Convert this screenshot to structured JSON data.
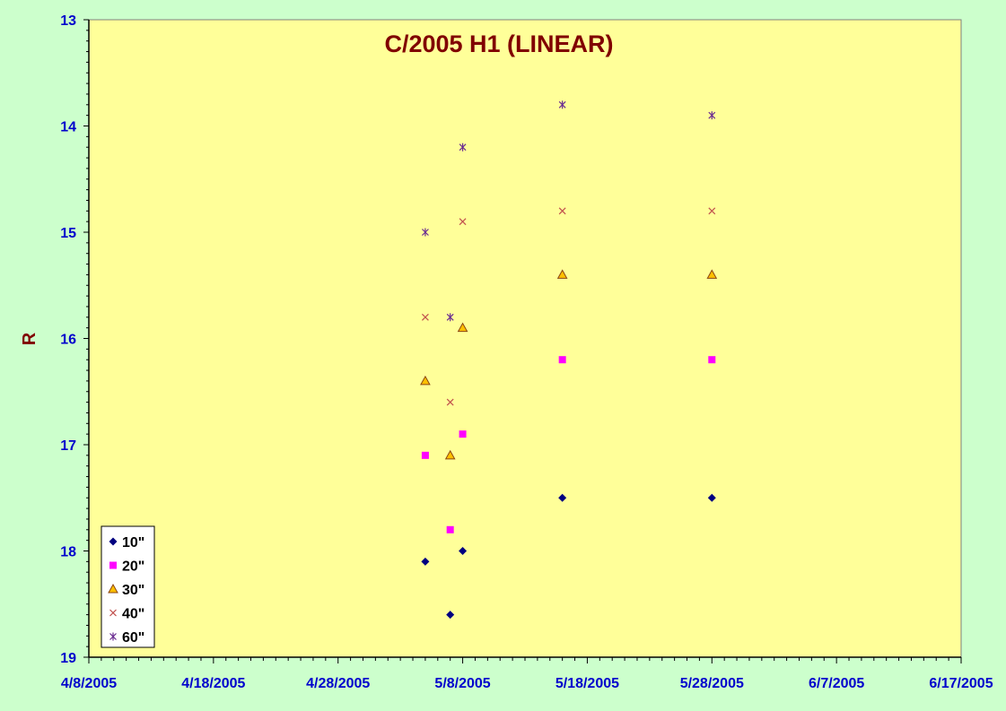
{
  "chart_data": {
    "type": "scatter",
    "title": "C/2005 H1 (LINEAR)",
    "xlabel": "",
    "ylabel": "R",
    "x_axis": {
      "min": "2005-04-08",
      "max": "2005-06-17",
      "major_step_days": 10,
      "tick_labels": [
        "4/8/2005",
        "4/18/2005",
        "4/28/2005",
        "5/8/2005",
        "5/18/2005",
        "5/28/2005",
        "6/7/2005",
        "6/17/2005"
      ]
    },
    "y_axis": {
      "min": 13,
      "max": 19,
      "reversed": true,
      "tick_labels": [
        "13",
        "14",
        "15",
        "16",
        "17",
        "18",
        "19"
      ]
    },
    "grid": false,
    "legend_position": "bottom-left",
    "series": [
      {
        "name": "10\"",
        "marker": "diamond",
        "color": "#000080",
        "points": [
          {
            "x": "2005-05-05",
            "y": 18.1
          },
          {
            "x": "2005-05-07",
            "y": 18.6
          },
          {
            "x": "2005-05-08",
            "y": 18.0
          },
          {
            "x": "2005-05-16",
            "y": 17.5
          },
          {
            "x": "2005-05-28",
            "y": 17.5
          }
        ]
      },
      {
        "name": "20\"",
        "marker": "square",
        "color": "#ff00ff",
        "points": [
          {
            "x": "2005-05-05",
            "y": 17.1
          },
          {
            "x": "2005-05-07",
            "y": 17.8
          },
          {
            "x": "2005-05-08",
            "y": 16.9
          },
          {
            "x": "2005-05-16",
            "y": 16.2
          },
          {
            "x": "2005-05-28",
            "y": 16.2
          }
        ]
      },
      {
        "name": "30\"",
        "marker": "triangle",
        "color": "#ffc000",
        "stroke": "#8b4513",
        "points": [
          {
            "x": "2005-05-05",
            "y": 16.4
          },
          {
            "x": "2005-05-07",
            "y": 17.1
          },
          {
            "x": "2005-05-08",
            "y": 15.9
          },
          {
            "x": "2005-05-16",
            "y": 15.4
          },
          {
            "x": "2005-05-28",
            "y": 15.4
          }
        ]
      },
      {
        "name": "40\"",
        "marker": "x",
        "color": "#c0504d",
        "points": [
          {
            "x": "2005-05-05",
            "y": 15.8
          },
          {
            "x": "2005-05-07",
            "y": 16.6
          },
          {
            "x": "2005-05-08",
            "y": 14.9
          },
          {
            "x": "2005-05-16",
            "y": 14.8
          },
          {
            "x": "2005-05-28",
            "y": 14.8
          }
        ]
      },
      {
        "name": "60\"",
        "marker": "star",
        "color": "#6a2c91",
        "points": [
          {
            "x": "2005-05-05",
            "y": 15.0
          },
          {
            "x": "2005-05-07",
            "y": 15.8
          },
          {
            "x": "2005-05-08",
            "y": 14.2
          },
          {
            "x": "2005-05-16",
            "y": 13.8
          },
          {
            "x": "2005-05-28",
            "y": 13.9
          }
        ]
      }
    ],
    "colors": {
      "page_background": "#ccffcc",
      "plot_background": "#ffff99",
      "axis_text": "#0000cc",
      "title": "#800000"
    }
  }
}
